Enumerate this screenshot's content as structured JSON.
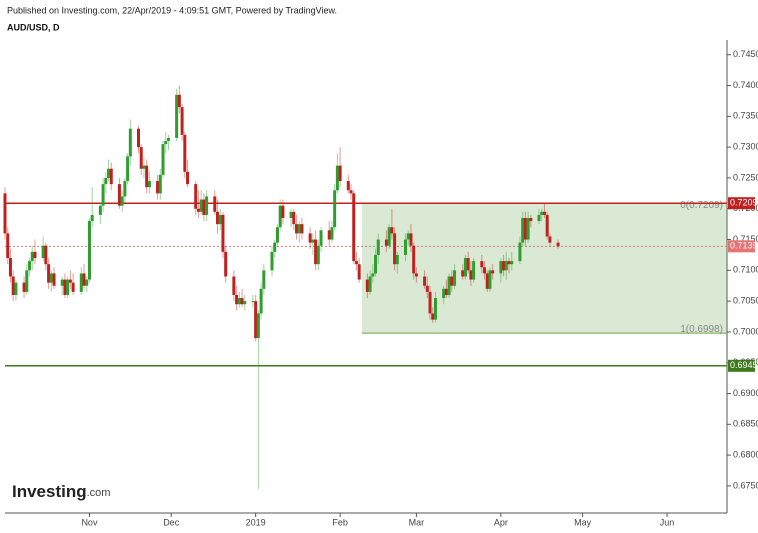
{
  "chart_data": {
    "type": "candlestick",
    "header": "Published on Investing.com, 22/Apr/2019 - 4:09:51 GMT, Powered by TradingView.",
    "title": "AUD/USD, D",
    "logo": {
      "name": "Investing",
      "suffix": ".com"
    },
    "up_color": "#2e9e2e",
    "down_color": "#c0211f",
    "xlim": [
      0,
      265
    ],
    "xticks": [
      {
        "value": 31,
        "label": "Nov"
      },
      {
        "value": 61,
        "label": "Dec"
      },
      {
        "value": 92,
        "label": "2019"
      },
      {
        "value": 123,
        "label": "Feb"
      },
      {
        "value": 151,
        "label": "Mar"
      },
      {
        "value": 182,
        "label": "Apr"
      },
      {
        "value": 212,
        "label": "May"
      },
      {
        "value": 243,
        "label": "Jun"
      }
    ],
    "ylim": [
      0.6706,
      0.7474
    ],
    "yticks": [
      {
        "value": 0.675,
        "label": "0.6750"
      },
      {
        "value": 0.68,
        "label": "0.6800"
      },
      {
        "value": 0.685,
        "label": "0.6850"
      },
      {
        "value": 0.69,
        "label": "0.6900"
      },
      {
        "value": 0.695,
        "label": "0.6950"
      },
      {
        "value": 0.7,
        "label": "0.7000"
      },
      {
        "value": 0.705,
        "label": "0.7050"
      },
      {
        "value": 0.71,
        "label": "0.7100"
      },
      {
        "value": 0.715,
        "label": "0.7150"
      },
      {
        "value": 0.72,
        "label": "0.7200"
      },
      {
        "value": 0.725,
        "label": "0.7250"
      },
      {
        "value": 0.73,
        "label": "0.7300"
      },
      {
        "value": 0.735,
        "label": "0.7350"
      },
      {
        "value": 0.74,
        "label": "0.7400"
      },
      {
        "value": 0.745,
        "label": "0.7450"
      }
    ],
    "grid": false,
    "lines": [
      {
        "value": 0.7209,
        "color": "#c0211f",
        "style": "solid"
      },
      {
        "value": 0.7139,
        "color": "#e57373",
        "style": "dotted"
      },
      {
        "value": 0.6945,
        "color": "#3d7a1e",
        "style": "solid"
      }
    ],
    "fib": {
      "x_start": 131,
      "color": "#6aa84f",
      "levels": [
        {
          "value": 0.7209,
          "label": "0(0.7209)"
        },
        {
          "value": 0.6998,
          "label": "1(0.6998)"
        }
      ]
    },
    "x": [
      0,
      1,
      2,
      3,
      4,
      7,
      8,
      9,
      10,
      11,
      14,
      15,
      16,
      17,
      18,
      21,
      22,
      23,
      24,
      25,
      28,
      29,
      30,
      31,
      32,
      35,
      36,
      37,
      38,
      39,
      42,
      43,
      44,
      45,
      46,
      49,
      50,
      51,
      52,
      53,
      56,
      57,
      58,
      59,
      60,
      63,
      64,
      65,
      66,
      67,
      70,
      71,
      72,
      73,
      74,
      77,
      78,
      79,
      80,
      81,
      84,
      85,
      86,
      87,
      88,
      91,
      92,
      93,
      94,
      95,
      98,
      99,
      100,
      101,
      102,
      105,
      106,
      107,
      108,
      109,
      112,
      113,
      114,
      115,
      116,
      119,
      120,
      121,
      122,
      123,
      126,
      127,
      128,
      129,
      130,
      133,
      134,
      135,
      136,
      137,
      140,
      141,
      142,
      143,
      144,
      147,
      148,
      149,
      150,
      151,
      154,
      155,
      156,
      157,
      158,
      161,
      162,
      163,
      164,
      165,
      168,
      169,
      170,
      171,
      172,
      175,
      176,
      177,
      178,
      179,
      182,
      183,
      184,
      185,
      186,
      189,
      190,
      191,
      192,
      193,
      196,
      197,
      198,
      199,
      200,
      203
    ],
    "ohlc": [
      [
        0.7225,
        0.7235,
        0.715,
        0.716
      ],
      [
        0.716,
        0.717,
        0.711,
        0.712
      ],
      [
        0.712,
        0.7135,
        0.708,
        0.709
      ],
      [
        0.709,
        0.71,
        0.705,
        0.706
      ],
      [
        0.706,
        0.7085,
        0.705,
        0.708
      ],
      [
        0.708,
        0.709,
        0.7055,
        0.7065
      ],
      [
        0.7065,
        0.711,
        0.706,
        0.71
      ],
      [
        0.71,
        0.712,
        0.709,
        0.7115
      ],
      [
        0.7115,
        0.714,
        0.71,
        0.713
      ],
      [
        0.713,
        0.715,
        0.711,
        0.712
      ],
      [
        0.712,
        0.7155,
        0.7115,
        0.714
      ],
      [
        0.714,
        0.7145,
        0.71,
        0.711
      ],
      [
        0.711,
        0.712,
        0.707,
        0.708
      ],
      [
        0.708,
        0.71,
        0.7065,
        0.7095
      ],
      [
        0.7095,
        0.7105,
        0.707,
        0.7075
      ],
      [
        0.7075,
        0.709,
        0.706,
        0.7085
      ],
      [
        0.7085,
        0.7095,
        0.7055,
        0.706
      ],
      [
        0.706,
        0.709,
        0.7055,
        0.7085
      ],
      [
        0.7085,
        0.71,
        0.707,
        0.708
      ],
      [
        0.708,
        0.7095,
        0.706,
        0.7065
      ],
      [
        0.7065,
        0.7105,
        0.706,
        0.7095
      ],
      [
        0.7095,
        0.711,
        0.707,
        0.7075
      ],
      [
        0.7075,
        0.709,
        0.7065,
        0.7085
      ],
      [
        0.7085,
        0.7185,
        0.708,
        0.718
      ],
      [
        0.718,
        0.7235,
        0.717,
        0.719
      ],
      [
        0.719,
        0.721,
        0.7175,
        0.7205
      ],
      [
        0.7205,
        0.725,
        0.7195,
        0.724
      ],
      [
        0.724,
        0.726,
        0.7225,
        0.725
      ],
      [
        0.725,
        0.728,
        0.7245,
        0.7265
      ],
      [
        0.7265,
        0.7275,
        0.723,
        0.724
      ],
      [
        0.724,
        0.725,
        0.72,
        0.7205
      ],
      [
        0.7205,
        0.723,
        0.7195,
        0.722
      ],
      [
        0.722,
        0.725,
        0.721,
        0.7245
      ],
      [
        0.7245,
        0.729,
        0.724,
        0.7285
      ],
      [
        0.7285,
        0.7345,
        0.727,
        0.733
      ],
      [
        0.733,
        0.7335,
        0.729,
        0.73
      ],
      [
        0.73,
        0.7305,
        0.7255,
        0.7265
      ],
      [
        0.7265,
        0.7285,
        0.725,
        0.727
      ],
      [
        0.727,
        0.728,
        0.7225,
        0.7235
      ],
      [
        0.7235,
        0.726,
        0.7225,
        0.7245
      ],
      [
        0.7245,
        0.7255,
        0.7215,
        0.7225
      ],
      [
        0.7225,
        0.7265,
        0.7215,
        0.7255
      ],
      [
        0.7255,
        0.731,
        0.725,
        0.7305
      ],
      [
        0.7305,
        0.7325,
        0.729,
        0.731
      ],
      [
        0.731,
        0.732,
        0.7295,
        0.7315
      ],
      [
        0.7315,
        0.7395,
        0.731,
        0.7385
      ],
      [
        0.7385,
        0.74,
        0.7355,
        0.7365
      ],
      [
        0.7365,
        0.737,
        0.731,
        0.732
      ],
      [
        0.732,
        0.7325,
        0.725,
        0.726
      ],
      [
        0.726,
        0.728,
        0.7235,
        0.724
      ],
      [
        0.724,
        0.7245,
        0.719,
        0.72
      ],
      [
        0.72,
        0.723,
        0.7185,
        0.7195
      ],
      [
        0.7195,
        0.723,
        0.719,
        0.7215
      ],
      [
        0.7215,
        0.7225,
        0.718,
        0.719
      ],
      [
        0.719,
        0.723,
        0.718,
        0.722
      ],
      [
        0.722,
        0.723,
        0.719,
        0.7195
      ],
      [
        0.7195,
        0.7215,
        0.716,
        0.7175
      ],
      [
        0.7175,
        0.72,
        0.7165,
        0.719
      ],
      [
        0.719,
        0.7195,
        0.712,
        0.713
      ],
      [
        0.713,
        0.714,
        0.708,
        0.709
      ],
      [
        0.709,
        0.71,
        0.705,
        0.706
      ],
      [
        0.706,
        0.7075,
        0.7035,
        0.7045
      ],
      [
        0.7045,
        0.7065,
        0.704,
        0.7055
      ],
      [
        0.7055,
        0.707,
        0.704,
        0.7045
      ],
      [
        0.7045,
        0.706,
        0.7035,
        0.705
      ],
      [
        0.705,
        0.706,
        0.704,
        0.705
      ],
      [
        0.705,
        0.706,
        0.6985,
        0.699
      ],
      [
        0.699,
        0.7035,
        0.6745,
        0.703
      ],
      [
        0.703,
        0.708,
        0.702,
        0.707
      ],
      [
        0.707,
        0.711,
        0.706,
        0.71
      ],
      [
        0.71,
        0.714,
        0.709,
        0.713
      ],
      [
        0.713,
        0.715,
        0.712,
        0.7145
      ],
      [
        0.7145,
        0.7175,
        0.714,
        0.717
      ],
      [
        0.717,
        0.7215,
        0.7165,
        0.7205
      ],
      [
        0.7205,
        0.7215,
        0.7175,
        0.7185
      ],
      [
        0.7185,
        0.72,
        0.717,
        0.7195
      ],
      [
        0.7195,
        0.72,
        0.7165,
        0.7175
      ],
      [
        0.7175,
        0.719,
        0.715,
        0.716
      ],
      [
        0.716,
        0.718,
        0.7145,
        0.7175
      ],
      [
        0.7175,
        0.7185,
        0.715,
        0.716
      ],
      [
        0.716,
        0.717,
        0.7135,
        0.7145
      ],
      [
        0.7145,
        0.716,
        0.7125,
        0.715
      ],
      [
        0.715,
        0.7165,
        0.71,
        0.711
      ],
      [
        0.711,
        0.715,
        0.71,
        0.714
      ],
      [
        0.714,
        0.717,
        0.713,
        0.7165
      ],
      [
        0.7165,
        0.718,
        0.714,
        0.715
      ],
      [
        0.715,
        0.718,
        0.7145,
        0.717
      ],
      [
        0.717,
        0.724,
        0.7165,
        0.723
      ],
      [
        0.723,
        0.729,
        0.7225,
        0.727
      ],
      [
        0.727,
        0.73,
        0.7235,
        0.7245
      ],
      [
        0.7245,
        0.7255,
        0.7225,
        0.723
      ],
      [
        0.723,
        0.724,
        0.7215,
        0.7225
      ],
      [
        0.7225,
        0.723,
        0.711,
        0.7115
      ],
      [
        0.7115,
        0.713,
        0.71,
        0.711
      ],
      [
        0.711,
        0.712,
        0.708,
        0.7085
      ],
      [
        0.7085,
        0.7095,
        0.7055,
        0.7065
      ],
      [
        0.7065,
        0.71,
        0.706,
        0.709
      ],
      [
        0.709,
        0.711,
        0.708,
        0.7095
      ],
      [
        0.7095,
        0.7135,
        0.709,
        0.7125
      ],
      [
        0.7125,
        0.716,
        0.711,
        0.715
      ],
      [
        0.715,
        0.7165,
        0.713,
        0.714
      ],
      [
        0.714,
        0.7175,
        0.7135,
        0.717
      ],
      [
        0.717,
        0.72,
        0.715,
        0.716
      ],
      [
        0.716,
        0.717,
        0.71,
        0.711
      ],
      [
        0.711,
        0.713,
        0.7095,
        0.7125
      ],
      [
        0.7125,
        0.716,
        0.7115,
        0.715
      ],
      [
        0.715,
        0.7165,
        0.714,
        0.716
      ],
      [
        0.716,
        0.7175,
        0.713,
        0.714
      ],
      [
        0.714,
        0.7145,
        0.7085,
        0.7095
      ],
      [
        0.7095,
        0.7105,
        0.708,
        0.709
      ],
      [
        0.709,
        0.71,
        0.707,
        0.7075
      ],
      [
        0.7075,
        0.709,
        0.7055,
        0.7065
      ],
      [
        0.7065,
        0.7075,
        0.702,
        0.703
      ],
      [
        0.703,
        0.704,
        0.7015,
        0.702
      ],
      [
        0.702,
        0.7065,
        0.7015,
        0.7055
      ],
      [
        0.7055,
        0.7075,
        0.7045,
        0.707
      ],
      [
        0.707,
        0.7085,
        0.7055,
        0.706
      ],
      [
        0.706,
        0.7095,
        0.7055,
        0.709
      ],
      [
        0.709,
        0.71,
        0.7065,
        0.7075
      ],
      [
        0.7075,
        0.711,
        0.707,
        0.71
      ],
      [
        0.71,
        0.711,
        0.7085,
        0.709
      ],
      [
        0.709,
        0.7125,
        0.7085,
        0.712
      ],
      [
        0.712,
        0.713,
        0.7095,
        0.71
      ],
      [
        0.71,
        0.7115,
        0.7075,
        0.7085
      ],
      [
        0.7085,
        0.712,
        0.708,
        0.7115
      ],
      [
        0.7115,
        0.7125,
        0.7095,
        0.7105
      ],
      [
        0.7105,
        0.7115,
        0.7085,
        0.7095
      ],
      [
        0.7095,
        0.71,
        0.7065,
        0.707
      ],
      [
        0.707,
        0.7105,
        0.7065,
        0.71
      ],
      [
        0.71,
        0.711,
        0.7085,
        0.7095
      ],
      [
        0.7095,
        0.712,
        0.708,
        0.7115
      ],
      [
        0.7115,
        0.7125,
        0.709,
        0.71
      ],
      [
        0.71,
        0.713,
        0.7085,
        0.7115
      ],
      [
        0.7115,
        0.712,
        0.7095,
        0.711
      ],
      [
        0.711,
        0.713,
        0.71,
        0.7115
      ],
      [
        0.7115,
        0.7155,
        0.711,
        0.7145
      ],
      [
        0.7145,
        0.7195,
        0.714,
        0.7185
      ],
      [
        0.7185,
        0.7195,
        0.714,
        0.715
      ],
      [
        0.715,
        0.7195,
        0.7145,
        0.7185
      ],
      [
        0.7185,
        0.719,
        0.717,
        0.718
      ],
      [
        0.718,
        0.72,
        0.7175,
        0.719
      ],
      [
        0.719,
        0.72,
        0.718,
        0.7195
      ],
      [
        0.7195,
        0.721,
        0.7185,
        0.719
      ],
      [
        0.719,
        0.7195,
        0.715,
        0.7155
      ],
      [
        0.7155,
        0.716,
        0.714,
        0.7145
      ],
      [
        0.7145,
        0.715,
        0.7135,
        0.7139
      ]
    ]
  }
}
